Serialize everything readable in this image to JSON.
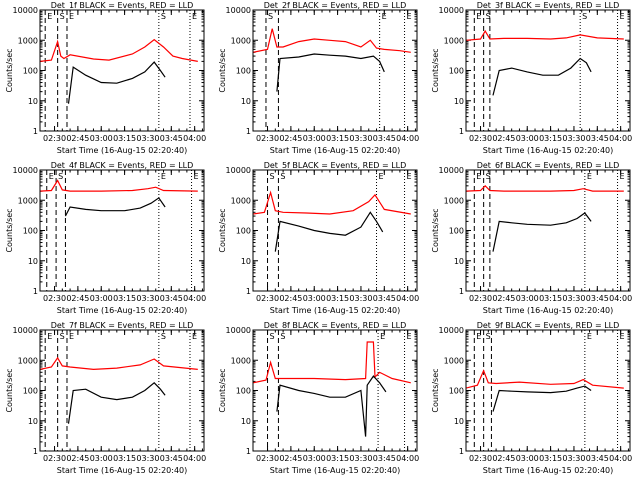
{
  "x_tick_labels": [
    "02:30",
    "02:45",
    "03:00",
    "03:15",
    "03:30",
    "03:45",
    "04:00"
  ],
  "y_tick_labels": [
    "1",
    "10",
    "100",
    "1000",
    "10000"
  ],
  "xlabel": "Start Time (16-Aug-15 02:20:40)",
  "ylabel": "Counts/sec",
  "colors": {
    "events": "#000000",
    "lld": "#ff0000",
    "axes": "#000000"
  },
  "chart_data": [
    {
      "type": "line",
      "title": "Det_1f BLACK = Events, RED = LLD",
      "xlim": [
        "02:20:40",
        "04:06:00"
      ],
      "ylim": [
        1,
        10000
      ],
      "yscale": "log",
      "markers": [
        {
          "label": "E",
          "time": "02:24",
          "style": "dashed"
        },
        {
          "label": "S",
          "time": "02:32",
          "style": "dashed"
        },
        {
          "label": "E",
          "time": "02:38",
          "style": "dashed"
        },
        {
          "label": "S",
          "time": "03:37",
          "style": "dotted"
        },
        {
          "label": "E",
          "time": "03:57",
          "style": "dotted"
        }
      ],
      "series": [
        {
          "color": "#ff0000",
          "x": [
            "02:20:40",
            "02:28",
            "02:32",
            "02:34",
            "02:36",
            "02:40",
            "02:55",
            "03:05",
            "03:20",
            "03:28",
            "03:34",
            "03:40",
            "03:46",
            "03:52",
            "04:02"
          ],
          "values": [
            200,
            220,
            900,
            300,
            250,
            330,
            240,
            220,
            350,
            600,
            1050,
            600,
            300,
            250,
            200
          ]
        },
        {
          "color": "#000000",
          "x": [
            "02:39",
            "02:42",
            "02:50",
            "03:00",
            "03:10",
            "03:20",
            "03:28",
            "03:34",
            "03:38",
            "03:41"
          ],
          "values": [
            8,
            130,
            70,
            40,
            38,
            55,
            90,
            190,
            100,
            60
          ]
        }
      ]
    },
    {
      "type": "line",
      "title": "Det_2f BLACK = Events, RED = LLD",
      "xlim": [
        "02:20:40",
        "04:06:00"
      ],
      "ylim": [
        1,
        10000
      ],
      "yscale": "log",
      "markers": [
        {
          "label": "S",
          "time": "02:29",
          "style": "dashed"
        },
        {
          "label": "",
          "time": "02:37",
          "style": "dashed"
        },
        {
          "label": "E",
          "time": "03:42",
          "style": "dotted"
        },
        {
          "label": "E",
          "time": "03:58",
          "style": "dotted"
        }
      ],
      "series": [
        {
          "color": "#ff0000",
          "x": [
            "02:20:40",
            "02:30",
            "02:33",
            "02:36",
            "02:40",
            "02:50",
            "03:00",
            "03:10",
            "03:20",
            "03:30",
            "03:36",
            "03:40",
            "03:45",
            "03:55",
            "04:02"
          ],
          "values": [
            400,
            500,
            2400,
            600,
            600,
            900,
            1100,
            1000,
            900,
            600,
            1000,
            550,
            500,
            450,
            400
          ]
        },
        {
          "color": "#000000",
          "x": [
            "02:36",
            "02:38",
            "02:50",
            "03:00",
            "03:10",
            "03:20",
            "03:30",
            "03:38",
            "03:42",
            "03:45"
          ],
          "values": [
            20,
            250,
            280,
            350,
            320,
            300,
            250,
            300,
            200,
            90
          ]
        }
      ]
    },
    {
      "type": "line",
      "title": "Det_3f BLACK = Events, RED = LLD",
      "xlim": [
        "02:20:40",
        "04:06:00"
      ],
      "ylim": [
        1,
        10000
      ],
      "yscale": "log",
      "markers": [
        {
          "label": "E",
          "time": "02:26",
          "style": "dashed"
        },
        {
          "label": "S",
          "time": "02:32",
          "style": "dashed"
        },
        {
          "label": "",
          "time": "02:36",
          "style": "dashed"
        },
        {
          "label": "S",
          "time": "03:34",
          "style": "dotted"
        },
        {
          "label": "E",
          "time": "03:58",
          "style": "dotted"
        }
      ],
      "series": [
        {
          "color": "#ff0000",
          "x": [
            "02:20:40",
            "02:30",
            "02:33",
            "02:36",
            "02:45",
            "03:00",
            "03:15",
            "03:25",
            "03:34",
            "03:45",
            "04:02"
          ],
          "values": [
            1000,
            1100,
            2000,
            1100,
            1150,
            1150,
            1100,
            1200,
            1500,
            1200,
            1100
          ]
        },
        {
          "color": "#000000",
          "x": [
            "02:38",
            "02:42",
            "02:50",
            "03:00",
            "03:10",
            "03:20",
            "03:28",
            "03:34",
            "03:38",
            "03:41"
          ],
          "values": [
            15,
            100,
            120,
            90,
            70,
            70,
            120,
            250,
            180,
            90
          ]
        }
      ]
    },
    {
      "type": "line",
      "title": "Det_4f BLACK = Events, RED = LLD",
      "xlim": [
        "02:20:40",
        "04:06:00"
      ],
      "ylim": [
        1,
        10000
      ],
      "yscale": "log",
      "markers": [
        {
          "label": "E",
          "time": "02:25",
          "style": "dashed"
        },
        {
          "label": "S",
          "time": "02:31",
          "style": "dashed"
        },
        {
          "label": "",
          "time": "02:37",
          "style": "dashed"
        },
        {
          "label": "E",
          "time": "03:37",
          "style": "dotted"
        },
        {
          "label": "E",
          "time": "03:58",
          "style": "dotted"
        }
      ],
      "series": [
        {
          "color": "#ff0000",
          "x": [
            "02:20:40",
            "02:28",
            "02:32",
            "02:35",
            "02:40",
            "03:00",
            "03:20",
            "03:30",
            "03:35",
            "03:40",
            "04:02"
          ],
          "values": [
            2000,
            2100,
            4500,
            2200,
            2000,
            2000,
            2100,
            2400,
            2700,
            2100,
            2000
          ]
        },
        {
          "color": "#000000",
          "x": [
            "02:37",
            "02:40",
            "02:50",
            "03:00",
            "03:15",
            "03:25",
            "03:32",
            "03:37",
            "03:41"
          ],
          "values": [
            300,
            600,
            500,
            450,
            450,
            550,
            800,
            1200,
            600
          ]
        }
      ]
    },
    {
      "type": "line",
      "title": "Det_5f BLACK = Events, RED = LLD",
      "xlim": [
        "02:20:40",
        "04:06:00"
      ],
      "ylim": [
        1,
        10000
      ],
      "yscale": "log",
      "markers": [
        {
          "label": "S",
          "time": "02:30",
          "style": "dashed"
        },
        {
          "label": "S",
          "time": "02:37",
          "style": "dashed"
        },
        {
          "label": "E",
          "time": "03:40",
          "style": "dotted"
        },
        {
          "label": "E",
          "time": "03:58",
          "style": "dotted"
        }
      ],
      "series": [
        {
          "color": "#ff0000",
          "x": [
            "02:20:40",
            "02:28",
            "02:32",
            "02:35",
            "02:40",
            "02:55",
            "03:10",
            "03:25",
            "03:35",
            "03:39",
            "03:45",
            "04:02"
          ],
          "values": [
            350,
            400,
            1800,
            450,
            400,
            380,
            350,
            450,
            900,
            1500,
            500,
            350
          ]
        },
        {
          "color": "#000000",
          "x": [
            "02:35",
            "02:38",
            "02:50",
            "03:00",
            "03:10",
            "03:20",
            "03:30",
            "03:36",
            "03:40",
            "03:44"
          ],
          "values": [
            20,
            200,
            140,
            100,
            80,
            70,
            130,
            400,
            200,
            90
          ]
        }
      ]
    },
    {
      "type": "line",
      "title": "Det_6f BLACK = Events, RED = LLD",
      "xlim": [
        "02:20:40",
        "04:06:00"
      ],
      "ylim": [
        1,
        10000
      ],
      "yscale": "log",
      "markers": [
        {
          "label": "E",
          "time": "02:26",
          "style": "dashed"
        },
        {
          "label": "S",
          "time": "02:32",
          "style": "dashed"
        },
        {
          "label": "",
          "time": "02:36",
          "style": "dashed"
        },
        {
          "label": "E",
          "time": "03:37",
          "style": "dotted"
        },
        {
          "label": "E",
          "time": "03:58",
          "style": "dotted"
        }
      ],
      "series": [
        {
          "color": "#ff0000",
          "x": [
            "02:20:40",
            "02:30",
            "02:33",
            "02:36",
            "02:45",
            "03:00",
            "03:15",
            "03:30",
            "03:36",
            "03:42",
            "04:02"
          ],
          "values": [
            2000,
            2100,
            3000,
            2100,
            2000,
            2000,
            2000,
            2100,
            2400,
            2000,
            2000
          ]
        },
        {
          "color": "#000000",
          "x": [
            "02:38",
            "02:42",
            "02:50",
            "03:00",
            "03:15",
            "03:25",
            "03:32",
            "03:37",
            "03:41"
          ],
          "values": [
            20,
            200,
            180,
            160,
            150,
            180,
            250,
            380,
            200
          ]
        }
      ]
    },
    {
      "type": "line",
      "title": "Det_7f BLACK = Events, RED = LLD",
      "xlim": [
        "02:20:40",
        "04:06:00"
      ],
      "ylim": [
        1,
        10000
      ],
      "yscale": "log",
      "markers": [
        {
          "label": "E",
          "time": "02:24",
          "style": "dashed"
        },
        {
          "label": "S",
          "time": "02:32",
          "style": "dashed"
        },
        {
          "label": "E",
          "time": "02:38",
          "style": "dashed"
        },
        {
          "label": "S",
          "time": "03:37",
          "style": "dotted"
        },
        {
          "label": "E",
          "time": "03:57",
          "style": "dotted"
        }
      ],
      "series": [
        {
          "color": "#ff0000",
          "x": [
            "02:20:40",
            "02:28",
            "02:32",
            "02:35",
            "02:40",
            "02:55",
            "03:10",
            "03:25",
            "03:34",
            "03:40",
            "04:02"
          ],
          "values": [
            500,
            600,
            1200,
            650,
            600,
            500,
            550,
            700,
            1100,
            650,
            500
          ]
        },
        {
          "color": "#000000",
          "x": [
            "02:39",
            "02:42",
            "02:50",
            "03:00",
            "03:10",
            "03:20",
            "03:28",
            "03:34",
            "03:38",
            "03:41"
          ],
          "values": [
            8,
            100,
            110,
            60,
            50,
            60,
            100,
            180,
            110,
            70
          ]
        }
      ]
    },
    {
      "type": "line",
      "title": "Det_8f BLACK = Events, RED = LLD",
      "xlim": [
        "02:20:40",
        "04:06:00"
      ],
      "ylim": [
        1,
        10000
      ],
      "yscale": "log",
      "markers": [
        {
          "label": "S",
          "time": "02:30",
          "style": "dashed"
        },
        {
          "label": "S",
          "time": "02:37",
          "style": "dashed"
        },
        {
          "label": "E",
          "time": "03:41",
          "style": "dotted"
        },
        {
          "label": "E",
          "time": "03:58",
          "style": "dotted"
        }
      ],
      "series": [
        {
          "color": "#ff0000",
          "x": [
            "02:20:40",
            "02:29",
            "02:32",
            "02:35",
            "02:40",
            "03:00",
            "03:20",
            "03:33",
            "03:34",
            "03:38",
            "03:39",
            "03:42",
            "03:50",
            "04:02"
          ],
          "values": [
            180,
            220,
            850,
            250,
            250,
            250,
            230,
            250,
            4000,
            4000,
            280,
            400,
            250,
            180
          ]
        },
        {
          "color": "#000000",
          "x": [
            "02:36",
            "02:38",
            "02:50",
            "03:00",
            "03:10",
            "03:20",
            "03:30",
            "03:33",
            "03:34",
            "03:38",
            "03:42",
            "03:46"
          ],
          "values": [
            20,
            150,
            100,
            80,
            60,
            60,
            100,
            3,
            150,
            300,
            180,
            90
          ]
        }
      ]
    },
    {
      "type": "line",
      "title": "Det_9f BLACK = Events, RED = LLD",
      "xlim": [
        "02:20:40",
        "04:06:00"
      ],
      "ylim": [
        1,
        10000
      ],
      "yscale": "log",
      "markers": [
        {
          "label": "E",
          "time": "02:26",
          "style": "dashed"
        },
        {
          "label": "S",
          "time": "02:32",
          "style": "dashed"
        },
        {
          "label": "",
          "time": "02:37",
          "style": "dashed"
        },
        {
          "label": "E",
          "time": "03:37",
          "style": "dotted"
        },
        {
          "label": "E",
          "time": "03:58",
          "style": "dotted"
        }
      ],
      "series": [
        {
          "color": "#ff0000",
          "x": [
            "02:20:40",
            "02:28",
            "02:32",
            "02:35",
            "02:40",
            "02:55",
            "03:15",
            "03:30",
            "03:36",
            "03:42",
            "04:02"
          ],
          "values": [
            120,
            150,
            450,
            180,
            170,
            190,
            160,
            170,
            230,
            150,
            120
          ]
        },
        {
          "color": "#000000",
          "x": [
            "02:38",
            "02:42",
            "02:50",
            "03:00",
            "03:15",
            "03:25",
            "03:32",
            "03:37",
            "03:41"
          ],
          "values": [
            20,
            100,
            95,
            90,
            85,
            95,
            120,
            140,
            100
          ]
        }
      ]
    }
  ]
}
